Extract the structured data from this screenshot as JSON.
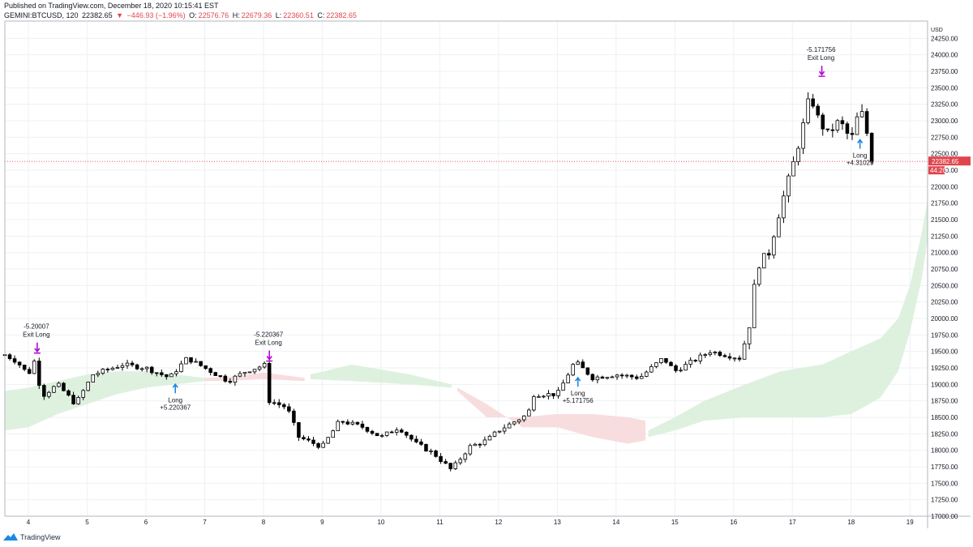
{
  "header": {
    "published": "Published on TradingView.com, December 18, 2020 10:15:41 EST",
    "symbol": "GEMINI:BTCUSD, 120",
    "last": "22382.65",
    "change_arrow": "▼",
    "change": "−446.93 (−1.96%)",
    "o_label": "O:",
    "o_val": "22576.76",
    "h_label": "H:",
    "h_val": "22679.36",
    "l_label": "L:",
    "l_val": "22360.51",
    "c_label": "C:",
    "c_val": "22382.65"
  },
  "footer": {
    "brand": "TradingView"
  },
  "colors": {
    "up_candle": "#ffffff",
    "down_candle": "#000000",
    "wick": "#000000",
    "cloud_bull": "#d8efd9",
    "cloud_bear": "#f7d7d9",
    "grid": "#eef0f3",
    "price_line": "#e0454e",
    "signal_exit": "#b40bd4",
    "signal_long": "#1e88e5"
  },
  "chart_data": {
    "type": "candlestick",
    "y_axis_unit": "USD",
    "ylim": [
      17000,
      24500
    ],
    "y_ticks": [
      17000,
      17250,
      17500,
      17750,
      18000,
      18250,
      18500,
      18750,
      19000,
      19250,
      19500,
      19750,
      20000,
      20250,
      20500,
      20750,
      21000,
      21250,
      21500,
      21750,
      22000,
      22250,
      22500,
      22750,
      23000,
      23250,
      23500,
      23750,
      24000,
      24250
    ],
    "y_tick_labels": [
      "17000.00",
      "17250.00",
      "17500.00",
      "17750.00",
      "18000.00",
      "18250.00",
      "18500.00",
      "18750.00",
      "19000.00",
      "19250.00",
      "19500.00",
      "19750.00",
      "20000.00",
      "20250.00",
      "20500.00",
      "20750.00",
      "21000.00",
      "21250.00",
      "21500.00",
      "21750.00",
      "22000.00",
      "22250.00",
      "22500.00",
      "22750.00",
      "23000.00",
      "23250.00",
      "23500.00",
      "23750.00",
      "24000.00",
      "24250.00"
    ],
    "x_ticks": [
      4,
      5,
      6,
      7,
      8,
      9,
      10,
      11,
      12,
      13,
      14,
      15,
      16,
      17,
      18,
      19
    ],
    "x_tick_labels": [
      "4",
      "5",
      "6",
      "7",
      "8",
      "9",
      "10",
      "11",
      "12",
      "13",
      "14",
      "15",
      "16",
      "17",
      "18",
      "19"
    ],
    "xlim": [
      3.6,
      19.3
    ],
    "last_price": 22382.65,
    "last_price_label": "22382.65",
    "countdown_label": "44:20",
    "anchors": [
      [
        3.6,
        19450
      ],
      [
        3.8,
        19350
      ],
      [
        4.0,
        19150
      ],
      [
        4.15,
        19450
      ],
      [
        4.2,
        18800
      ],
      [
        4.5,
        19000
      ],
      [
        4.8,
        18700
      ],
      [
        5.1,
        19150
      ],
      [
        5.6,
        19300
      ],
      [
        6.0,
        19250
      ],
      [
        6.4,
        19100
      ],
      [
        6.7,
        19400
      ],
      [
        7.1,
        19200
      ],
      [
        7.4,
        19050
      ],
      [
        7.7,
        19200
      ],
      [
        8.05,
        19300
      ],
      [
        8.1,
        18750
      ],
      [
        8.4,
        18650
      ],
      [
        8.6,
        18200
      ],
      [
        9.0,
        18050
      ],
      [
        9.3,
        18450
      ],
      [
        9.7,
        18350
      ],
      [
        10.0,
        18200
      ],
      [
        10.3,
        18350
      ],
      [
        10.6,
        18100
      ],
      [
        10.9,
        17950
      ],
      [
        11.2,
        17700
      ],
      [
        11.5,
        18050
      ],
      [
        11.8,
        18150
      ],
      [
        12.0,
        18300
      ],
      [
        12.3,
        18450
      ],
      [
        12.5,
        18550
      ],
      [
        12.6,
        18850
      ],
      [
        13.0,
        18850
      ],
      [
        13.3,
        19350
      ],
      [
        13.6,
        19100
      ],
      [
        14.0,
        19150
      ],
      [
        14.4,
        19100
      ],
      [
        14.8,
        19400
      ],
      [
        15.0,
        19200
      ],
      [
        15.3,
        19350
      ],
      [
        15.6,
        19500
      ],
      [
        16.1,
        19400
      ],
      [
        16.25,
        19800
      ],
      [
        16.4,
        20800
      ],
      [
        16.6,
        21000
      ],
      [
        16.8,
        21700
      ],
      [
        17.0,
        22300
      ],
      [
        17.15,
        22800
      ],
      [
        17.3,
        23400
      ],
      [
        17.45,
        23000
      ],
      [
        17.6,
        22800
      ],
      [
        17.8,
        23000
      ],
      [
        18.0,
        22700
      ],
      [
        18.15,
        23200
      ],
      [
        18.25,
        22900
      ],
      [
        18.35,
        22382.65
      ]
    ],
    "cloud_segments": [
      {
        "kind": "bull",
        "points": [
          [
            3.6,
            18900,
            18300
          ],
          [
            4.0,
            18950,
            18350
          ],
          [
            4.5,
            19050,
            18550
          ],
          [
            5.0,
            19150,
            18700
          ],
          [
            5.5,
            19200,
            18850
          ],
          [
            6.0,
            19200,
            18950
          ],
          [
            6.5,
            19150,
            19000
          ],
          [
            7.0,
            19100,
            19050
          ]
        ]
      },
      {
        "kind": "bear",
        "points": [
          [
            7.0,
            19100,
            19050
          ],
          [
            7.5,
            19120,
            19060
          ],
          [
            8.0,
            19180,
            19080
          ],
          [
            8.7,
            19100,
            19050
          ]
        ]
      },
      {
        "kind": "bull",
        "points": [
          [
            8.8,
            19150,
            19080
          ],
          [
            9.5,
            19300,
            19050
          ],
          [
            10.5,
            19150,
            19000
          ],
          [
            11.2,
            19000,
            18950
          ]
        ]
      },
      {
        "kind": "bear",
        "points": [
          [
            11.3,
            18950,
            18900
          ],
          [
            11.8,
            18700,
            18500
          ],
          [
            12.4,
            18350,
            18500
          ],
          [
            13.0,
            18350,
            18550
          ],
          [
            13.6,
            18200,
            18550
          ],
          [
            14.2,
            18100,
            18500
          ],
          [
            14.5,
            18150,
            18450
          ]
        ]
      },
      {
        "kind": "bull",
        "points": [
          [
            14.55,
            18300,
            18200
          ],
          [
            15.0,
            18500,
            18300
          ],
          [
            15.5,
            18750,
            18450
          ],
          [
            16.2,
            19000,
            18500
          ],
          [
            16.8,
            19200,
            18500
          ],
          [
            17.5,
            19300,
            18500
          ],
          [
            18.0,
            19500,
            18550
          ],
          [
            18.5,
            19700,
            18800
          ],
          [
            18.8,
            20000,
            19200
          ],
          [
            19.0,
            20500,
            19800
          ],
          [
            19.2,
            21300,
            20600
          ],
          [
            19.3,
            21800,
            21200
          ]
        ]
      }
    ],
    "signals": [
      {
        "type": "exit",
        "label": "Exit Long",
        "value": "-5.20007",
        "x": 4.15,
        "price": 19450
      },
      {
        "type": "long",
        "label": "Long",
        "value": "+5.220367",
        "x": 6.5,
        "price": 19050
      },
      {
        "type": "exit",
        "label": "Exit Long",
        "value": "-5.220367",
        "x": 8.1,
        "price": 19330
      },
      {
        "type": "long",
        "label": "Long",
        "value": "+5.171756",
        "x": 13.35,
        "price": 19150
      },
      {
        "type": "exit",
        "label": "Exit Long",
        "value": "-5.171756",
        "x": 17.5,
        "price": 23650
      },
      {
        "type": "long",
        "label": "Long",
        "value": "+4.31029",
        "x": 18.15,
        "price": 22760
      }
    ]
  }
}
